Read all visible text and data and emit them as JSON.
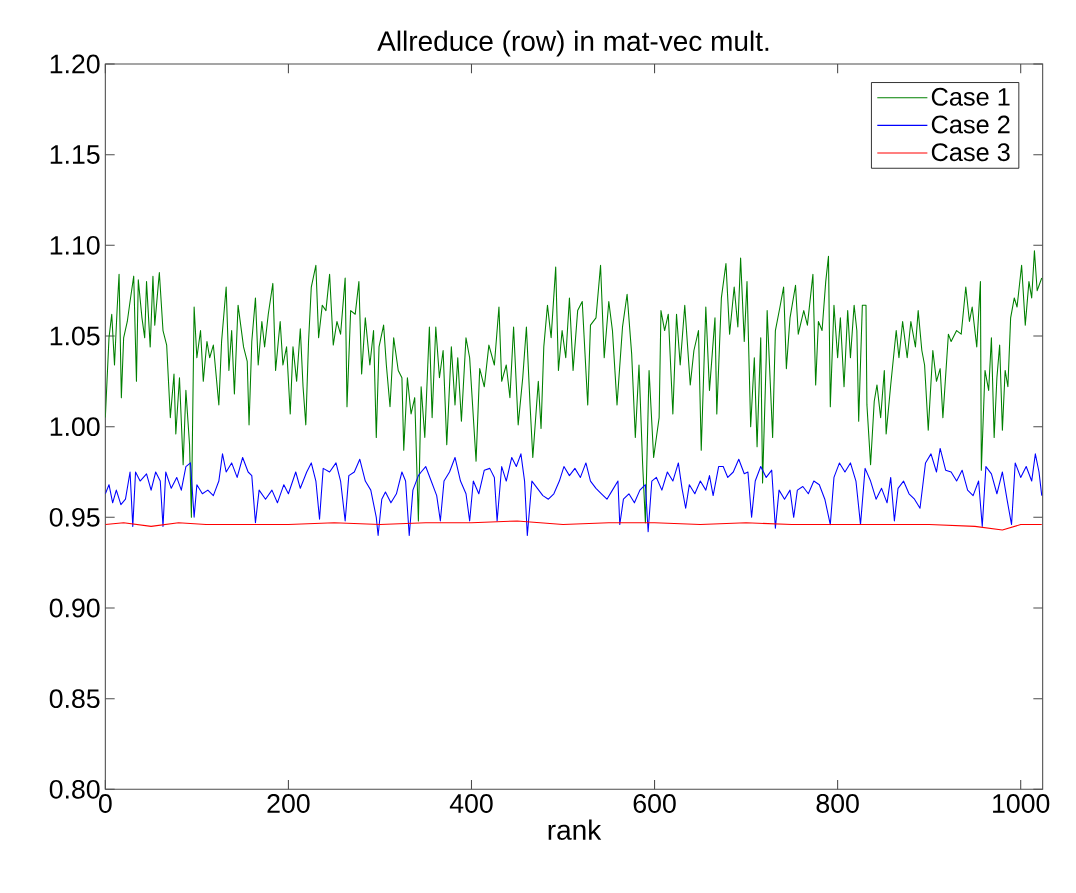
{
  "chart_data": {
    "type": "line",
    "title": "Allreduce (row) in mat-vec mult.",
    "xlabel": "rank",
    "xlim": [
      0,
      1024
    ],
    "xticks": [
      0,
      200,
      400,
      600,
      800,
      1000
    ],
    "ylim": [
      0.8,
      1.2
    ],
    "yticks": [
      {
        "value": 0.8,
        "label": "0.80"
      },
      {
        "value": 0.85,
        "label": "0.85"
      },
      {
        "value": 0.9,
        "label": "0.90"
      },
      {
        "value": 0.95,
        "label": "0.95"
      },
      {
        "value": 1.0,
        "label": "1.00"
      },
      {
        "value": 1.05,
        "label": "1.05"
      },
      {
        "value": 1.1,
        "label": "1.10"
      },
      {
        "value": 1.15,
        "label": "1.15"
      },
      {
        "value": 1.2,
        "label": "1.20"
      }
    ],
    "legend": "top right",
    "series": [
      {
        "name": "Case 1",
        "color": "#008000",
        "x": [
          0,
          4,
          7,
          10,
          13,
          15,
          17.5,
          20,
          24,
          27,
          31,
          34,
          36,
          40,
          43,
          45,
          49,
          52,
          54,
          59,
          63,
          67,
          71,
          75,
          77,
          81,
          85,
          88,
          92,
          94,
          97,
          100,
          104,
          107,
          111,
          114,
          118,
          124,
          127,
          132,
          135,
          138,
          141,
          145,
          151,
          155,
          157,
          160,
          164,
          167,
          171,
          174,
          178,
          183,
          186,
          191,
          194,
          198,
          202,
          205,
          209,
          213,
          216,
          219,
          222,
          225,
          230,
          233,
          237,
          241,
          245,
          249,
          253,
          257,
          262,
          264,
          268,
          273,
          277,
          280,
          284,
          289,
          293,
          296,
          299,
          304,
          307,
          311,
          315,
          320,
          324,
          326,
          330,
          334,
          338,
          342,
          345,
          349,
          354,
          357,
          361,
          365,
          369,
          373,
          378,
          382,
          385,
          389,
          394,
          398,
          405,
          409,
          414,
          419,
          425,
          430,
          433,
          438,
          442,
          446,
          451,
          456,
          460,
          464,
          467,
          473,
          476,
          479,
          483,
          487,
          492,
          495,
          499,
          503,
          507,
          511,
          516,
          521,
          527,
          530,
          536,
          541,
          545,
          550,
          554,
          559,
          565,
          570,
          575,
          579,
          583,
          587,
          590,
          594,
          599,
          605,
          607,
          611,
          615,
          620,
          624,
          628,
          633,
          639,
          643,
          648,
          651,
          656,
          660,
          666,
          668,
          673,
          678,
          682,
          687,
          691,
          694,
          698,
          701,
          705,
          709,
          712,
          716,
          718,
          722,
          723,
          729,
          732,
          737,
          741,
          744,
          748,
          754,
          757,
          763,
          767,
          773,
          776,
          779,
          783,
          787,
          790,
          792,
          796,
          800,
          803,
          807,
          811,
          814,
          818,
          821,
          823,
          827,
          831,
          832,
          836,
          840,
          843,
          847,
          851,
          853,
          858,
          864,
          867,
          871,
          876,
          880,
          885,
          888,
          892,
          895,
          899,
          904,
          908,
          912,
          915,
          921,
          924,
          930,
          935,
          940,
          944,
          947,
          952,
          956,
          957,
          961,
          965,
          968,
          971,
          974,
          977,
          980,
          983,
          986,
          989,
          993,
          996,
          1001,
          1005,
          1009,
          1012,
          1015,
          1018,
          1023
        ],
        "values": [
          1.005,
          1.049,
          1.062,
          1.034,
          1.066,
          1.084,
          1.016,
          1.049,
          1.058,
          1.069,
          1.083,
          1.025,
          1.081,
          1.06,
          1.049,
          1.08,
          1.044,
          1.083,
          1.056,
          1.085,
          1.053,
          1.045,
          1.005,
          1.029,
          0.996,
          1.027,
          0.979,
          1.02,
          0.99,
          0.95,
          1.066,
          1.038,
          1.053,
          1.025,
          1.047,
          1.038,
          1.045,
          1.012,
          1.047,
          1.077,
          1.031,
          1.053,
          1.018,
          1.067,
          1.044,
          1.036,
          1.001,
          1.047,
          1.071,
          1.034,
          1.058,
          1.044,
          1.062,
          1.079,
          1.031,
          1.058,
          1.034,
          1.044,
          1.007,
          1.044,
          1.025,
          1.054,
          1.022,
          1.001,
          1.047,
          1.077,
          1.089,
          1.049,
          1.067,
          1.064,
          1.084,
          1.045,
          1.058,
          1.051,
          1.082,
          1.011,
          1.064,
          1.062,
          1.08,
          1.029,
          1.06,
          1.034,
          1.053,
          0.994,
          1.044,
          1.056,
          1.034,
          1.011,
          1.049,
          1.031,
          1.027,
          0.987,
          1.027,
          1.007,
          1.016,
          0.948,
          1.022,
          0.994,
          1.055,
          1.005,
          1.055,
          1.027,
          1.042,
          0.99,
          1.044,
          1.012,
          1.038,
          1.003,
          1.049,
          1.038,
          0.981,
          1.032,
          1.022,
          1.045,
          1.034,
          1.066,
          1.025,
          1.034,
          1.016,
          1.055,
          1.001,
          1.027,
          1.055,
          1.012,
          0.983,
          1.025,
          0.999,
          1.044,
          1.067,
          1.049,
          1.088,
          1.031,
          1.053,
          1.038,
          1.071,
          1.031,
          1.064,
          1.069,
          1.012,
          1.056,
          1.06,
          1.089,
          1.038,
          1.069,
          1.053,
          1.012,
          1.055,
          1.073,
          1.04,
          0.994,
          1.034,
          0.979,
          0.947,
          1.031,
          0.983,
          1.005,
          1.064,
          1.053,
          1.062,
          1.007,
          1.062,
          1.034,
          1.067,
          1.023,
          1.042,
          1.053,
          0.987,
          1.066,
          1.02,
          1.06,
          1.007,
          1.071,
          1.09,
          1.051,
          1.077,
          1.055,
          1.093,
          1.047,
          1.08,
          1.0,
          1.038,
          0.989,
          1.049,
          0.969,
          1.038,
          1.064,
          0.994,
          1.053,
          1.066,
          1.077,
          1.032,
          1.06,
          1.078,
          1.051,
          1.064,
          1.056,
          1.084,
          1.023,
          1.058,
          1.053,
          1.08,
          1.094,
          1.011,
          1.067,
          1.038,
          1.06,
          1.022,
          1.064,
          1.038,
          1.067,
          1.053,
          1.003,
          1.067,
          1.067,
          1.012,
          0.979,
          1.014,
          1.023,
          1.005,
          1.031,
          0.996,
          1.023,
          1.053,
          1.038,
          1.058,
          1.038,
          1.058,
          1.044,
          1.064,
          1.042,
          1.034,
          0.998,
          1.042,
          1.025,
          1.032,
          1.005,
          1.051,
          1.047,
          1.053,
          1.051,
          1.077,
          1.058,
          1.066,
          1.044,
          1.08,
          0.976,
          1.031,
          1.02,
          1.049,
          0.994,
          1.027,
          1.045,
          0.998,
          1.031,
          1.022,
          1.06,
          1.071,
          1.066,
          1.089,
          1.056,
          1.08,
          1.071,
          1.097,
          1.075,
          1.082
        ]
      },
      {
        "name": "Case 2",
        "color": "#0000ff",
        "x": [
          0,
          4,
          8,
          12,
          17,
          22,
          27,
          30,
          33,
          38,
          45,
          50,
          55,
          60,
          63,
          66,
          72,
          78,
          83,
          88,
          93,
          97,
          100,
          106,
          112,
          118,
          124,
          128,
          132,
          138,
          144,
          150,
          156,
          160,
          164,
          168,
          175,
          182,
          188,
          195,
          200,
          208,
          213,
          220,
          225,
          230,
          234,
          238,
          245,
          252,
          257,
          262,
          266,
          272,
          278,
          284,
          290,
          296,
          298,
          302,
          306,
          312,
          318,
          324,
          328,
          332,
          336,
          342,
          345,
          350,
          356,
          362,
          366,
          370,
          376,
          382,
          388,
          394,
          398,
          402,
          408,
          414,
          420,
          425,
          428,
          433,
          438,
          444,
          449,
          454,
          458,
          461,
          466,
          472,
          478,
          484,
          490,
          496,
          501,
          507,
          513,
          519,
          525,
          530,
          536,
          542,
          548,
          554,
          560,
          562,
          566,
          572,
          578,
          584,
          590,
          593,
          597,
          602,
          608,
          614,
          620,
          626,
          630,
          634,
          638,
          644,
          650,
          656,
          660,
          664,
          670,
          675,
          680,
          686,
          692,
          698,
          702,
          706,
          710,
          716,
          722,
          728,
          732,
          736,
          742,
          748,
          752,
          756,
          762,
          768,
          774,
          780,
          786,
          792,
          796,
          802,
          808,
          814,
          820,
          825,
          830,
          836,
          842,
          848,
          854,
          858,
          862,
          866,
          872,
          878,
          884,
          890,
          896,
          902,
          908,
          912,
          918,
          924,
          930,
          936,
          942,
          948,
          954,
          958,
          962,
          968,
          974,
          980,
          985,
          990,
          994,
          1000,
          1006,
          1012,
          1016,
          1020,
          1023
        ],
        "values": [
          0.963,
          0.968,
          0.958,
          0.965,
          0.957,
          0.96,
          0.975,
          0.945,
          0.975,
          0.97,
          0.974,
          0.965,
          0.975,
          0.97,
          0.945,
          0.975,
          0.966,
          0.972,
          0.965,
          0.978,
          0.98,
          0.95,
          0.968,
          0.963,
          0.965,
          0.962,
          0.97,
          0.985,
          0.975,
          0.98,
          0.972,
          0.983,
          0.975,
          0.973,
          0.947,
          0.965,
          0.96,
          0.965,
          0.958,
          0.968,
          0.963,
          0.975,
          0.966,
          0.975,
          0.98,
          0.97,
          0.949,
          0.977,
          0.975,
          0.98,
          0.97,
          0.948,
          0.973,
          0.975,
          0.982,
          0.97,
          0.965,
          0.95,
          0.94,
          0.96,
          0.964,
          0.958,
          0.963,
          0.975,
          0.97,
          0.94,
          0.965,
          0.973,
          0.975,
          0.978,
          0.97,
          0.962,
          0.948,
          0.97,
          0.975,
          0.983,
          0.97,
          0.963,
          0.948,
          0.97,
          0.963,
          0.976,
          0.977,
          0.972,
          0.948,
          0.978,
          0.97,
          0.983,
          0.978,
          0.985,
          0.97,
          0.94,
          0.97,
          0.966,
          0.962,
          0.96,
          0.963,
          0.97,
          0.978,
          0.973,
          0.977,
          0.972,
          0.98,
          0.97,
          0.966,
          0.963,
          0.96,
          0.965,
          0.97,
          0.946,
          0.96,
          0.963,
          0.958,
          0.965,
          0.968,
          0.942,
          0.97,
          0.972,
          0.965,
          0.975,
          0.97,
          0.98,
          0.966,
          0.955,
          0.968,
          0.963,
          0.97,
          0.965,
          0.973,
          0.962,
          0.978,
          0.978,
          0.972,
          0.975,
          0.982,
          0.974,
          0.975,
          0.95,
          0.97,
          0.978,
          0.972,
          0.976,
          0.944,
          0.965,
          0.96,
          0.965,
          0.95,
          0.965,
          0.967,
          0.963,
          0.97,
          0.968,
          0.96,
          0.946,
          0.972,
          0.98,
          0.975,
          0.98,
          0.97,
          0.946,
          0.977,
          0.97,
          0.96,
          0.966,
          0.958,
          0.972,
          0.948,
          0.966,
          0.97,
          0.963,
          0.96,
          0.955,
          0.98,
          0.985,
          0.975,
          0.988,
          0.976,
          0.975,
          0.97,
          0.976,
          0.965,
          0.962,
          0.97,
          0.945,
          0.978,
          0.974,
          0.963,
          0.975,
          0.96,
          0.946,
          0.98,
          0.972,
          0.978,
          0.97,
          0.985,
          0.975,
          0.962
        ]
      },
      {
        "name": "Case 3",
        "color": "#ff0000",
        "x": [
          0,
          20,
          50,
          80,
          110,
          150,
          200,
          250,
          300,
          350,
          400,
          450,
          500,
          550,
          600,
          650,
          700,
          750,
          800,
          850,
          900,
          950,
          980,
          1000,
          1023
        ],
        "values": [
          0.946,
          0.947,
          0.945,
          0.947,
          0.946,
          0.946,
          0.946,
          0.947,
          0.946,
          0.947,
          0.947,
          0.948,
          0.946,
          0.947,
          0.947,
          0.946,
          0.947,
          0.946,
          0.946,
          0.946,
          0.946,
          0.945,
          0.943,
          0.946,
          0.946
        ]
      }
    ]
  }
}
